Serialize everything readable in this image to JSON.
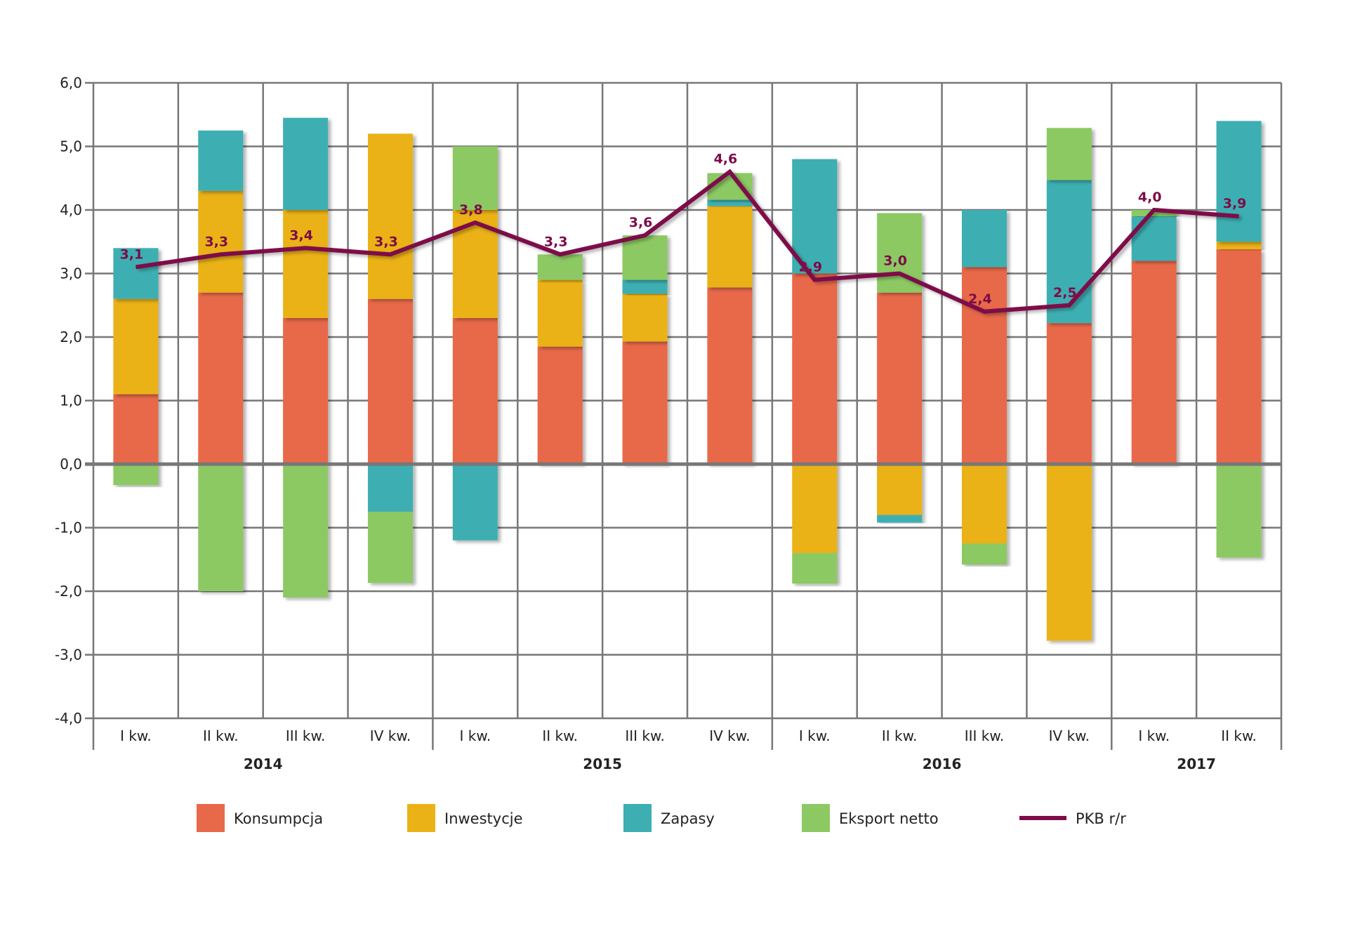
{
  "chart_data": {
    "type": "bar",
    "stacked": true,
    "title": "",
    "xlabel": "",
    "ylabel": "",
    "ylim": [
      -4,
      6
    ],
    "yticks": [
      -4,
      -3,
      -2,
      -1,
      0,
      1,
      2,
      3,
      4,
      5,
      6
    ],
    "ytick_labels": [
      "-4,0",
      "-3,0",
      "-2,0",
      "-1,0",
      "0,0",
      "1,0",
      "2,0",
      "3,0",
      "4,0",
      "5,0",
      "6,0"
    ],
    "grid": true,
    "legend_placement": "bottom",
    "categories": [
      "I kw.",
      "II kw.",
      "III kw.",
      "IV kw.",
      "I kw.",
      "II kw.",
      "III kw.",
      "IV kw.",
      "I kw.",
      "II kw.",
      "III kw.",
      "IV kw.",
      "I kw.",
      "II kw."
    ],
    "groups": [
      {
        "label": "2014",
        "span": 4
      },
      {
        "label": "2015",
        "span": 4
      },
      {
        "label": "2016",
        "span": 4
      },
      {
        "label": "2017",
        "span": 2
      }
    ],
    "series": [
      {
        "name": "Konsumpcja",
        "color": "#E8694A",
        "values": [
          1.1,
          2.7,
          2.3,
          2.6,
          2.3,
          1.85,
          1.93,
          2.78,
          3.0,
          2.7,
          3.1,
          2.22,
          3.2,
          3.38
        ]
      },
      {
        "name": "Inwestycje",
        "color": "#EAB216",
        "values": [
          1.5,
          1.6,
          1.7,
          2.6,
          1.7,
          1.05,
          0.75,
          1.28,
          -1.4,
          -0.8,
          -1.25,
          -2.78,
          0.0,
          0.12
        ]
      },
      {
        "name": "Zapasy",
        "color": "#3DAFB2",
        "values": [
          0.8,
          0.95,
          1.45,
          -0.75,
          -1.2,
          0.0,
          0.22,
          0.1,
          1.8,
          -0.12,
          0.9,
          2.25,
          0.7,
          1.9
        ]
      },
      {
        "name": "Eksport netto",
        "color": "#8CC963",
        "values": [
          -0.33,
          -2.0,
          -2.1,
          -1.12,
          1.0,
          0.4,
          0.7,
          0.42,
          -0.48,
          1.25,
          -0.33,
          0.82,
          0.1,
          -1.47
        ]
      }
    ],
    "line_series": {
      "name": "PKB r/r",
      "color": "#7D0C48",
      "values": [
        3.1,
        3.3,
        3.4,
        3.3,
        3.8,
        3.3,
        3.6,
        4.6,
        2.9,
        3.0,
        2.4,
        2.5,
        4.0,
        3.9
      ],
      "data_labels": [
        "3,1",
        "3,3",
        "3,4",
        "3,3",
        "3,8",
        "3,3",
        "3,6",
        "4,6",
        "2,9",
        "3,0",
        "2,4",
        "2,5",
        "4,0",
        "3,9"
      ]
    }
  }
}
